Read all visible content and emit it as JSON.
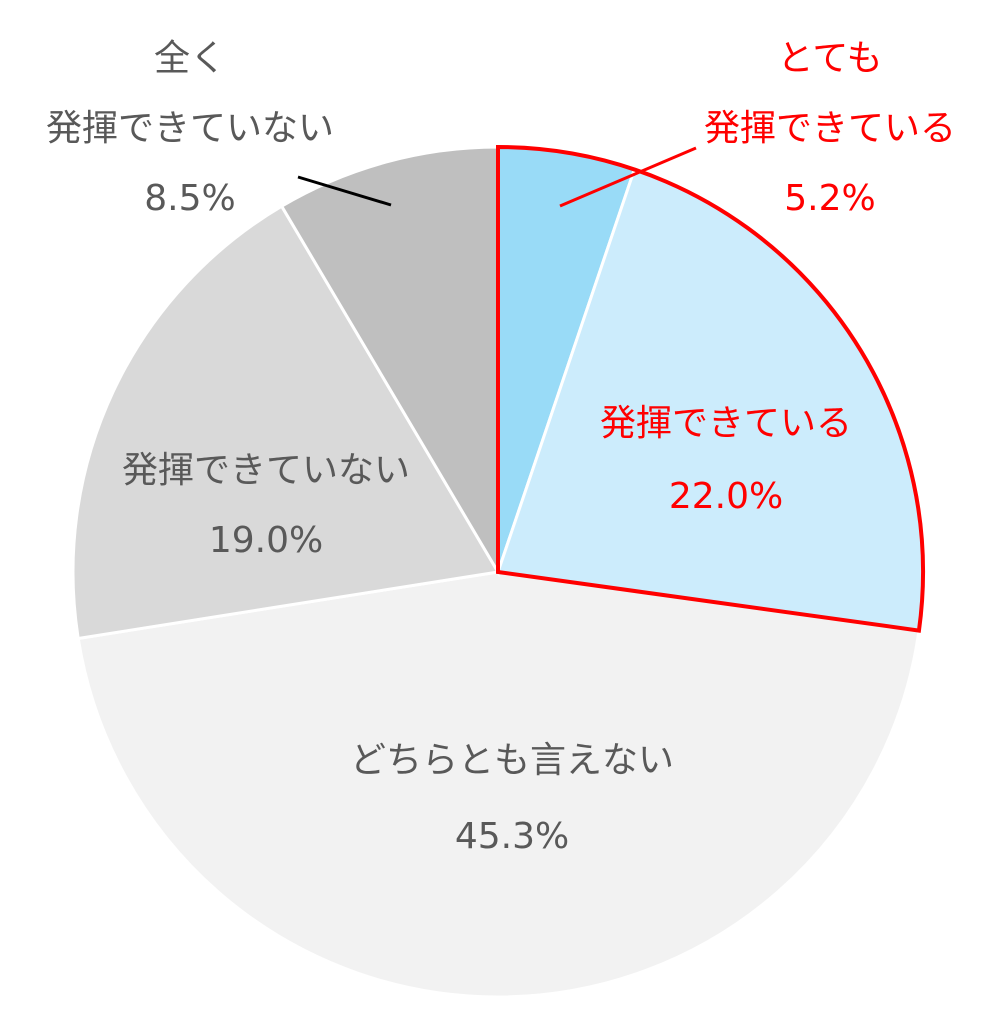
{
  "chart_data": {
    "type": "pie",
    "start_angle_deg": 0,
    "direction": "clockwise",
    "slices": [
      {
        "label": [
          "とても",
          "発揮できている"
        ],
        "value": 5.2,
        "value_label": "5.2%",
        "color": "#99dbf7",
        "label_color": "#ff0000"
      },
      {
        "label": [
          "発揮できている"
        ],
        "value": 22.0,
        "value_label": "22.0%",
        "color": "#ccecfc",
        "label_color": "#ff0000"
      },
      {
        "label": [
          "どちらとも言えない"
        ],
        "value": 45.3,
        "value_label": "45.3%",
        "color": "#f2f2f2",
        "label_color": "#595959"
      },
      {
        "label": [
          "発揮できていない"
        ],
        "value": 19.0,
        "value_label": "19.0%",
        "color": "#d9d9d9",
        "label_color": "#595959"
      },
      {
        "label": [
          "全く",
          "発揮できていない"
        ],
        "value": 8.5,
        "value_label": "8.5%",
        "color": "#bfbfbf",
        "label_color": "#595959"
      }
    ],
    "highlight": {
      "slices": [
        0,
        1
      ],
      "outline_color": "#ff0000"
    },
    "slice_border_color": "#ffffff"
  }
}
